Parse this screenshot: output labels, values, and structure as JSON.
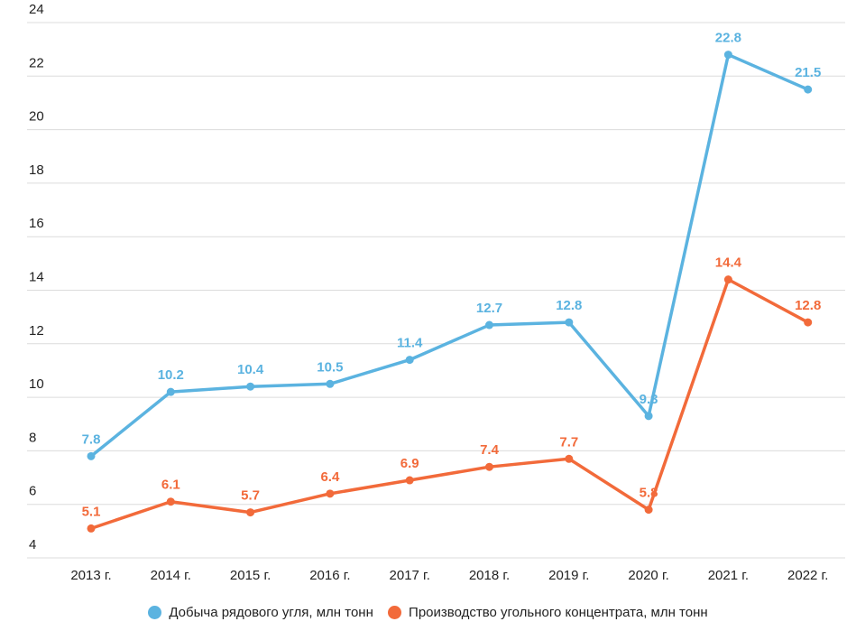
{
  "chart_data": {
    "type": "line",
    "categories": [
      "2013 г.",
      "2014 г.",
      "2015 г.",
      "2016 г.",
      "2017 г.",
      "2018 г.",
      "2019 г.",
      "2020 г.",
      "2021 г.",
      "2022 г."
    ],
    "y_ticks": [
      4,
      6,
      8,
      10,
      12,
      14,
      16,
      18,
      20,
      22,
      24
    ],
    "ylim": [
      4,
      24
    ],
    "grid": true,
    "legend_position": "bottom",
    "series": [
      {
        "name": "Добыча рядового угля, млн тонн",
        "color": "#5bb3e0",
        "values": [
          7.8,
          10.2,
          10.4,
          10.5,
          11.4,
          12.7,
          12.8,
          9.3,
          22.8,
          21.5
        ],
        "labels": [
          "7.8",
          "10.2",
          "10.4",
          "10.5",
          "11.4",
          "12.7",
          "12.8",
          "9.3",
          "22.8",
          "21.5"
        ]
      },
      {
        "name": "Производство угольного концентрата, млн тонн",
        "color": "#f26a3a",
        "values": [
          5.1,
          6.1,
          5.7,
          6.4,
          6.9,
          7.4,
          7.7,
          5.8,
          14.4,
          12.8
        ],
        "labels": [
          "5.1",
          "6.1",
          "5.7",
          "6.4",
          "6.9",
          "7.4",
          "7.7",
          "5.8",
          "14.4",
          "12.8"
        ]
      }
    ]
  }
}
